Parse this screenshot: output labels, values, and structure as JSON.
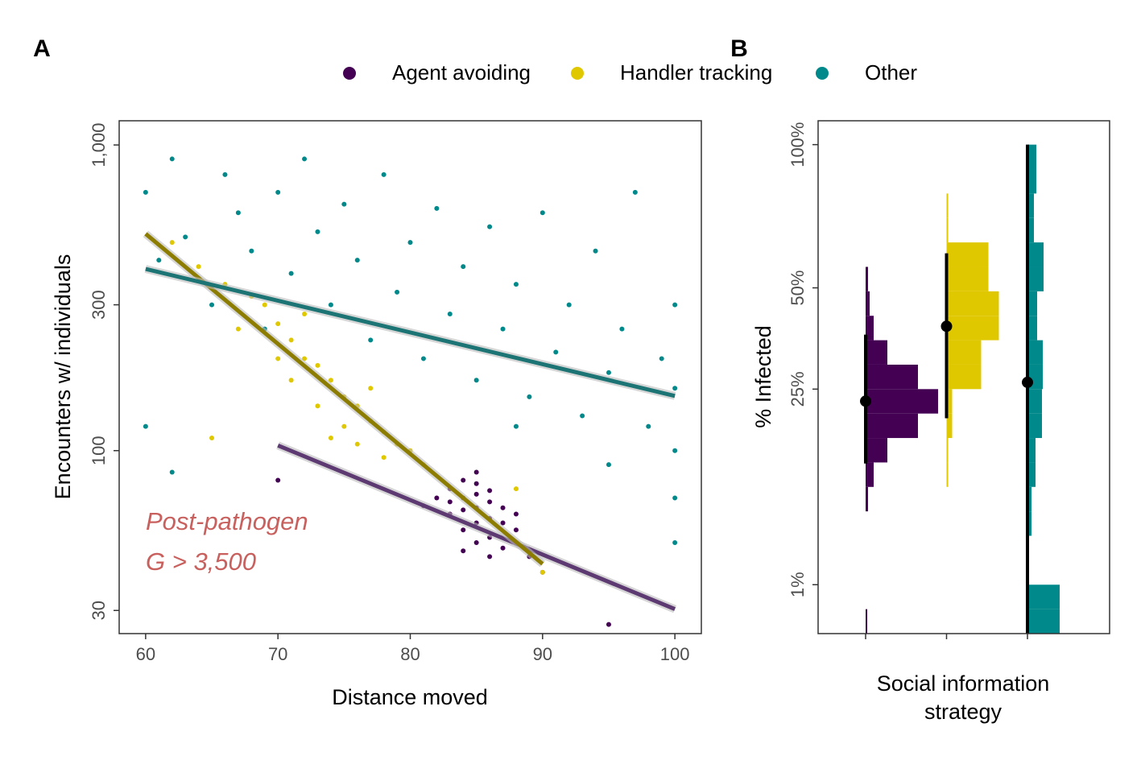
{
  "chart_data": [
    {
      "type": "scatter",
      "panel_label": "A",
      "x_label": "Distance moved",
      "y_label": "Encounters w/ individuals",
      "xlim": [
        58,
        102
      ],
      "ylim": [
        25.2,
        1200
      ],
      "y_scale": "log",
      "xticks": [
        60,
        70,
        80,
        90,
        100
      ],
      "yticks": [
        30,
        100,
        300,
        {
          "value": 1000,
          "label": "1,000"
        }
      ],
      "annotations": [
        "Post-pathogen",
        "G > 3,500"
      ],
      "annotation_color": "#c8605e",
      "series": [
        {
          "name": "Agent avoiding",
          "color": "#440154",
          "trend_color": "#5e3a73",
          "x": [
            83,
            84,
            85,
            86,
            84,
            85,
            86,
            87,
            83,
            82,
            84,
            85,
            86,
            88,
            87,
            85,
            84,
            86,
            83,
            85,
            87,
            89,
            81,
            86,
            84,
            88,
            85,
            90,
            70,
            95
          ],
          "y": [
            75,
            70,
            65,
            60,
            80,
            72,
            68,
            58,
            62,
            70,
            55,
            50,
            52,
            55,
            65,
            78,
            64,
            74,
            68,
            58,
            48,
            45,
            66,
            45,
            47,
            62,
            85,
            40,
            80,
            27
          ],
          "trend": {
            "x": [
              70,
              100
            ],
            "y": [
              104,
              30.3
            ]
          }
        },
        {
          "name": "Handler tracking",
          "color": "#e0c800",
          "trend_color": "#8c7c00",
          "x": [
            62,
            64,
            66,
            68,
            70,
            71,
            72,
            73,
            74,
            75,
            76,
            75,
            77,
            78,
            79,
            80,
            74,
            72,
            70,
            73,
            76,
            78,
            81,
            69,
            67,
            71,
            77,
            65,
            90,
            88
          ],
          "y": [
            480,
            400,
            350,
            320,
            260,
            230,
            200,
            190,
            170,
            150,
            140,
            120,
            125,
            115,
            105,
            100,
            110,
            280,
            200,
            140,
            105,
            95,
            90,
            300,
            250,
            170,
            160,
            110,
            40,
            75
          ],
          "trend": {
            "x": [
              60,
              90
            ],
            "y": [
              512,
              42.6
            ]
          }
        },
        {
          "name": "Other",
          "color": "#00898a",
          "trend_color": "#1c7474",
          "x": [
            60,
            61,
            62,
            63,
            65,
            66,
            67,
            68,
            69,
            70,
            71,
            72,
            73,
            74,
            75,
            76,
            77,
            78,
            79,
            80,
            81,
            82,
            83,
            84,
            85,
            86,
            87,
            88,
            89,
            90,
            91,
            92,
            93,
            94,
            95,
            96,
            97,
            98,
            99,
            100,
            100,
            100,
            60,
            62,
            100,
            100,
            95,
            88
          ],
          "y": [
            700,
            420,
            900,
            500,
            300,
            800,
            600,
            450,
            250,
            700,
            380,
            900,
            520,
            300,
            640,
            420,
            230,
            800,
            330,
            480,
            200,
            620,
            280,
            400,
            170,
            540,
            250,
            350,
            150,
            600,
            210,
            300,
            130,
            450,
            180,
            250,
            700,
            120,
            200,
            160,
            300,
            100,
            120,
            85,
            50,
            70,
            90,
            120
          ],
          "trend": {
            "x": [
              60,
              100
            ],
            "y": [
              393,
              151
            ]
          }
        }
      ]
    },
    {
      "type": "histogram",
      "panel_label": "B",
      "x_label": [
        "Social information",
        "strategy"
      ],
      "y_label": "% Infected",
      "ylim": [
        0,
        110
      ],
      "y_scale": "sqrt",
      "yticks": [
        {
          "value": 1,
          "label": "1%"
        },
        {
          "value": 25,
          "label": "25%"
        },
        {
          "value": 50,
          "label": "50%"
        },
        {
          "value": 100,
          "label": "100%"
        }
      ],
      "categories": [
        null,
        null,
        null
      ],
      "bins": [
        0,
        0.25,
        1,
        2.25,
        4,
        6.25,
        9,
        12.25,
        16,
        20.25,
        25,
        30.25,
        36,
        42.25,
        49,
        56.25,
        64,
        72.25,
        81,
        90.25,
        100
      ],
      "series": [
        {
          "color": "#440154",
          "counts": [
            2,
            0,
            0,
            0,
            0,
            3,
            10,
            27,
            65,
            90,
            65,
            27,
            10,
            5,
            3,
            0,
            0,
            0,
            0,
            0
          ],
          "mean": 22.6,
          "low": 12.1,
          "high": 37.4
        },
        {
          "color": "#e0c800",
          "counts": [
            0,
            0,
            0,
            0,
            0,
            0,
            2,
            2,
            7,
            7,
            43,
            43,
            65,
            65,
            52,
            52,
            2,
            2,
            0,
            0
          ],
          "mean": 39.5,
          "low": 19.4,
          "high": 60.5
        },
        {
          "color": "#00898a",
          "counts": [
            40,
            40,
            2,
            2,
            5,
            5,
            10,
            10,
            18,
            18,
            19,
            19,
            12,
            12,
            20,
            20,
            8,
            8,
            11,
            11
          ],
          "mean": 26.4,
          "low": 0,
          "high": 100
        }
      ]
    }
  ]
}
